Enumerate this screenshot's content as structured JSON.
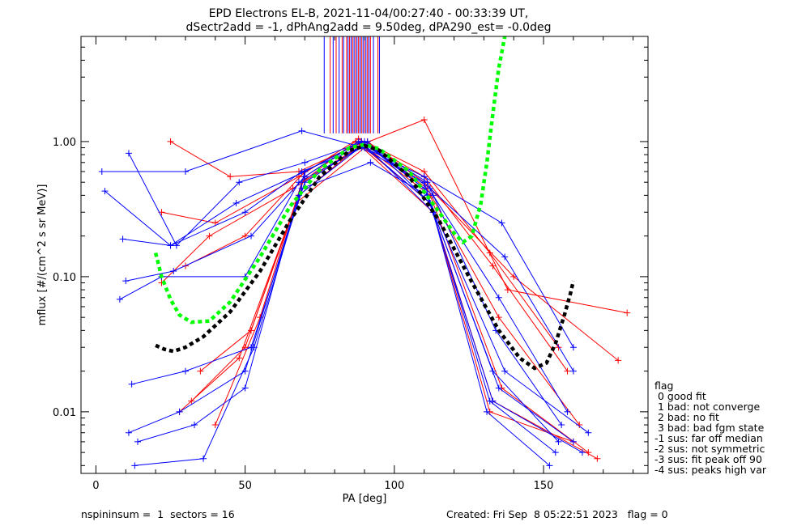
{
  "chart_data": {
    "type": "scatter",
    "title": "EPD Electrons EL-B, 2021-11-04/00:27:40 - 00:33:39 UT,",
    "subtitle": "dSectr2add = -1, dPhAng2add = 9.50deg, dPA290_est=  -0.0deg",
    "xlabel": "PA [deg]",
    "ylabel": "mflux [#/(cm^2 s sr MeV)]",
    "xlim": [
      -5,
      185
    ],
    "ylim": [
      0.0035,
      6.0
    ],
    "yscale": "log",
    "x_ticks": [
      0,
      50,
      100,
      150
    ],
    "x_tick_labels": [
      "0",
      "50",
      "100",
      "150"
    ],
    "y_ticks": [
      0.01,
      0.1,
      1.0
    ],
    "y_tick_labels": [
      "0.01",
      "0.10",
      "1.00"
    ],
    "colors": {
      "red": "#ff0000",
      "blue": "#0000ff",
      "green": "#00ff00",
      "black": "#000000"
    },
    "series": [
      {
        "color": "#ff0000",
        "style": "line+plus",
        "description_pa": "red spin curves",
        "curves": [
          [
            [
              25,
              1.0
            ],
            [
              45,
              0.55
            ],
            [
              68,
              0.6
            ],
            [
              90,
              1.0
            ],
            [
              110,
              0.6
            ],
            [
              132,
              0.15
            ],
            [
              155,
              0.03
            ]
          ],
          [
            [
              22,
              0.3
            ],
            [
              40,
              0.25
            ],
            [
              68,
              0.55
            ],
            [
              88,
              1.05
            ],
            [
              110,
              0.55
            ],
            [
              133,
              0.12
            ],
            [
              158,
              0.02
            ]
          ],
          [
            [
              30,
              0.12
            ],
            [
              50,
              0.2
            ],
            [
              70,
              0.6
            ],
            [
              89,
              1.0
            ],
            [
              111,
              0.45
            ],
            [
              135,
              0.05
            ],
            [
              162,
              0.008
            ]
          ],
          [
            [
              35,
              0.02
            ],
            [
              52,
              0.04
            ],
            [
              70,
              0.55
            ],
            [
              88,
              1.0
            ],
            [
              112,
              0.4
            ],
            [
              136,
              0.015
            ],
            [
              165,
              0.005
            ]
          ],
          [
            [
              32,
              0.012
            ],
            [
              50,
              0.03
            ],
            [
              68,
              0.4
            ],
            [
              89,
              0.95
            ],
            [
              110,
              1.45
            ],
            [
              138,
              0.08
            ],
            [
              178,
              0.054
            ]
          ],
          [
            [
              28,
              0.01
            ],
            [
              48,
              0.025
            ],
            [
              67,
              0.35
            ],
            [
              90,
              0.9
            ],
            [
              112,
              0.35
            ],
            [
              133,
              0.012
            ],
            [
              168,
              0.0045
            ]
          ],
          [
            [
              40,
              0.008
            ],
            [
              55,
              0.05
            ],
            [
              69,
              0.5
            ],
            [
              87,
              1.0
            ],
            [
              113,
              0.3
            ],
            [
              132,
              0.01
            ],
            [
              160,
              0.006
            ]
          ],
          [
            [
              22,
              0.09
            ],
            [
              38,
              0.2
            ],
            [
              66,
              0.45
            ],
            [
              91,
              1.0
            ],
            [
              110,
              0.5
            ],
            [
              140,
              0.1
            ],
            [
              175,
              0.024
            ]
          ]
        ]
      },
      {
        "color": "#0000ff",
        "style": "line+plus",
        "description_pa": "blue spin curves",
        "curves": [
          [
            [
              2,
              0.6
            ],
            [
              30,
              0.6
            ],
            [
              69,
              1.2
            ],
            [
              90,
              0.9
            ],
            [
              110,
              0.55
            ],
            [
              136,
              0.25
            ],
            [
              160,
              0.03
            ]
          ],
          [
            [
              3,
              0.43
            ],
            [
              25,
              0.17
            ],
            [
              47,
              0.35
            ],
            [
              70,
              0.6
            ],
            [
              89,
              1.0
            ],
            [
              112,
              0.45
            ],
            [
              137,
              0.14
            ],
            [
              160,
              0.02
            ]
          ],
          [
            [
              11,
              0.82
            ],
            [
              27,
              0.17
            ],
            [
              48,
              0.5
            ],
            [
              70,
              0.7
            ],
            [
              90,
              1.0
            ],
            [
              113,
              0.4
            ],
            [
              135,
              0.07
            ],
            [
              158,
              0.01
            ]
          ],
          [
            [
              9,
              0.19
            ],
            [
              25,
              0.17
            ],
            [
              50,
              0.3
            ],
            [
              69,
              0.6
            ],
            [
              91,
              0.95
            ],
            [
              111,
              0.5
            ],
            [
              134,
              0.04
            ],
            [
              156,
              0.008
            ]
          ],
          [
            [
              10,
              0.093
            ],
            [
              26,
              0.11
            ],
            [
              52,
              0.2
            ],
            [
              70,
              0.55
            ],
            [
              88,
              1.0
            ],
            [
              112,
              0.35
            ],
            [
              133,
              0.02
            ],
            [
              155,
              0.006
            ]
          ],
          [
            [
              8,
              0.068
            ],
            [
              22,
              0.1
            ],
            [
              50,
              0.1
            ],
            [
              68,
              0.5
            ],
            [
              89,
              0.9
            ],
            [
              110,
              0.5
            ],
            [
              132,
              0.012
            ],
            [
              154,
              0.005
            ]
          ],
          [
            [
              12,
              0.016
            ],
            [
              30,
              0.02
            ],
            [
              52,
              0.03
            ],
            [
              70,
              0.5
            ],
            [
              90,
              0.95
            ],
            [
              113,
              0.3
            ],
            [
              131,
              0.01
            ],
            [
              152,
              0.004
            ]
          ],
          [
            [
              11,
              0.007
            ],
            [
              28,
              0.01
            ],
            [
              50,
              0.02
            ],
            [
              68,
              0.4
            ],
            [
              91,
              1.0
            ],
            [
              112,
              0.35
            ],
            [
              135,
              0.015
            ],
            [
              160,
              0.006
            ]
          ],
          [
            [
              13,
              0.004
            ],
            [
              36,
              0.0045
            ],
            [
              53,
              0.03
            ],
            [
              69,
              0.45
            ],
            [
              92,
              0.7
            ],
            [
              111,
              0.4
            ],
            [
              133,
              0.012
            ],
            [
              163,
              0.005
            ]
          ],
          [
            [
              14,
              0.006
            ],
            [
              33,
              0.008
            ],
            [
              50,
              0.015
            ],
            [
              70,
              0.6
            ],
            [
              89,
              1.0
            ],
            [
              110,
              0.45
            ],
            [
              137,
              0.02
            ],
            [
              165,
              0.007
            ]
          ]
        ]
      },
      {
        "color": "#00ff00",
        "style": "dashed-fit",
        "points": [
          [
            20,
            0.15
          ],
          [
            22,
            0.1
          ],
          [
            25,
            0.068
          ],
          [
            28,
            0.052
          ],
          [
            32,
            0.046
          ],
          [
            38,
            0.047
          ],
          [
            45,
            0.065
          ],
          [
            55,
            0.14
          ],
          [
            65,
            0.33
          ],
          [
            75,
            0.62
          ],
          [
            85,
            0.9
          ],
          [
            90,
            0.95
          ],
          [
            95,
            0.88
          ],
          [
            105,
            0.6
          ],
          [
            115,
            0.3
          ],
          [
            120,
            0.21
          ],
          [
            123,
            0.18
          ],
          [
            126,
            0.2
          ],
          [
            129,
            0.35
          ],
          [
            131,
            0.7
          ],
          [
            133,
            1.6
          ],
          [
            135,
            3.5
          ],
          [
            137,
            6.0
          ]
        ]
      },
      {
        "color": "#000000",
        "style": "dashed-fit",
        "points": [
          [
            20,
            0.031
          ],
          [
            23,
            0.029
          ],
          [
            26,
            0.028
          ],
          [
            30,
            0.03
          ],
          [
            36,
            0.036
          ],
          [
            45,
            0.055
          ],
          [
            55,
            0.11
          ],
          [
            65,
            0.26
          ],
          [
            75,
            0.55
          ],
          [
            85,
            0.86
          ],
          [
            90,
            0.93
          ],
          [
            95,
            0.86
          ],
          [
            105,
            0.55
          ],
          [
            115,
            0.26
          ],
          [
            125,
            0.1
          ],
          [
            135,
            0.04
          ],
          [
            142,
            0.025
          ],
          [
            147,
            0.021
          ],
          [
            151,
            0.023
          ],
          [
            154,
            0.032
          ],
          [
            157,
            0.052
          ],
          [
            159,
            0.075
          ],
          [
            160,
            0.093
          ]
        ]
      }
    ],
    "vertical_markers": {
      "y_range": [
        1.15,
        6.0
      ],
      "red_x": [
        78.5,
        80.5,
        82.5,
        84.0,
        85.0,
        86.0,
        87.0,
        88.0,
        89.0,
        90.0,
        91.0,
        92.0,
        94.5
      ],
      "blue_x": [
        76.5,
        79.5,
        81.5,
        83.0,
        84.5,
        85.5,
        86.5,
        87.5,
        88.5,
        89.5,
        90.5,
        91.5,
        93.0,
        95.0
      ]
    },
    "legend": {
      "title": "flag",
      "entries": [
        " 0 good fit",
        " 1 bad: not converge",
        " 2 bad: no fit",
        " 3 bad: bad fgm state",
        "-1 sus: far off median",
        "-2 sus: not symmetric",
        "-3 sus: fit peak off 90",
        "-4 sus: peaks high var"
      ]
    }
  },
  "footer": {
    "left": "nspininsum =  1  sectors = 16",
    "right": "Created: Fri Sep  8 05:22:51 2023   flag = 0"
  }
}
